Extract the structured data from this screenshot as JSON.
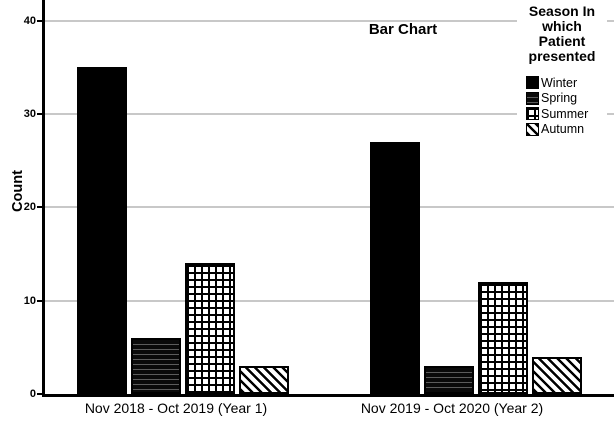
{
  "chart_data": {
    "type": "bar",
    "title": "Bar Chart",
    "xlabel": "",
    "ylabel": "Count",
    "categories": [
      "Nov 2018 - Oct 2019 (Year 1)",
      "Nov 2019 - Oct 2020 (Year 2)"
    ],
    "series": [
      {
        "name": "Winter",
        "pattern": "solid-black",
        "values": [
          35,
          27
        ]
      },
      {
        "name": "Spring",
        "pattern": "horizontal-stripes",
        "values": [
          6,
          3
        ]
      },
      {
        "name": "Summer",
        "pattern": "grid-crosshatch",
        "values": [
          14,
          12
        ]
      },
      {
        "name": "Autumn",
        "pattern": "diagonal-stripes",
        "values": [
          3,
          4
        ]
      }
    ],
    "yticks": [
      0,
      10,
      20,
      30,
      40
    ],
    "ylim": [
      0,
      42.2
    ],
    "grid": true,
    "legend_position": "top-right",
    "legend_title": "Season In which Patient presented",
    "legend_title_lines": [
      "Season In",
      "which",
      "Patient",
      "presented"
    ]
  },
  "colors": {
    "bar_fill": "#000000",
    "gridline": "#c8c8c8",
    "axis": "#000000",
    "text": "#000000",
    "background": "#ffffff"
  }
}
